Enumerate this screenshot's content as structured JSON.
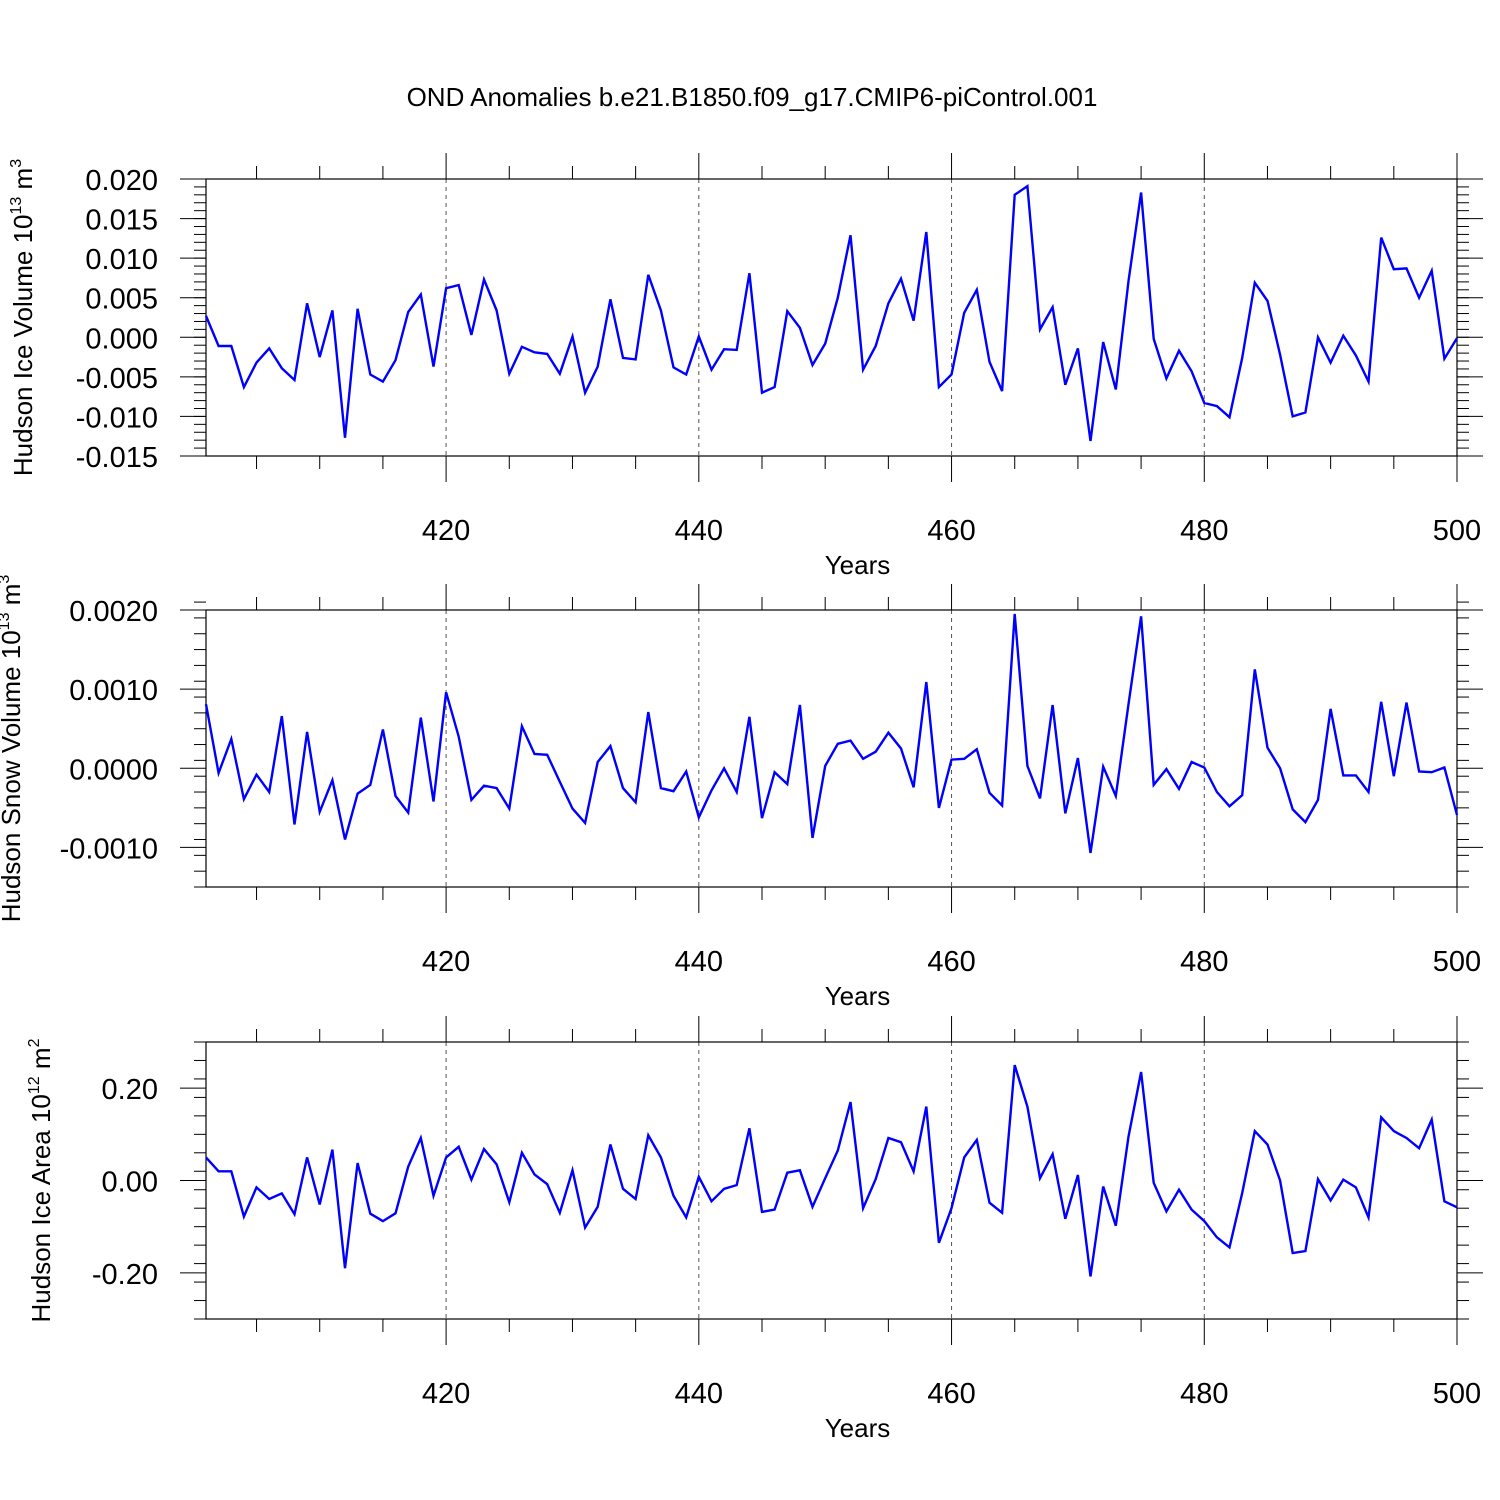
{
  "title": "OND Anomalies b.e21.B1850.f09_g17.CMIP6-piControl.001",
  "colors": {
    "series": "#0000ff",
    "axis": "#000000",
    "grid": "#555555"
  },
  "chart_data": [
    {
      "type": "line",
      "title": "OND Anomalies b.e21.B1850.f09_g17.CMIP6-piControl.001",
      "xlabel": "Years",
      "ylabel_main": "Hudson Ice Volume 10",
      "ylabel_exp": "13",
      "ylabel_unit": " m",
      "ylabel_unit_exp": "3",
      "xlim": [
        401,
        500
      ],
      "ylim": [
        -0.015,
        0.02
      ],
      "x_ticks": [
        420,
        440,
        460,
        480,
        500
      ],
      "x_tick_labels": [
        "420",
        "440",
        "460",
        "480",
        "500"
      ],
      "y_ticks": [
        -0.015,
        -0.01,
        -0.005,
        0,
        0.005,
        0.01,
        0.015,
        0.02
      ],
      "y_tick_labels": [
        "-0.015",
        "-0.010",
        "-0.005",
        "0.000",
        "0.005",
        "0.010",
        "0.015",
        "0.020"
      ],
      "grid": "dashed vertical at major x ticks",
      "x_start": 401,
      "series": [
        {
          "values": [
            0.0027,
            -0.0011,
            -0.0011,
            -0.0063,
            -0.0032,
            -0.0014,
            -0.0039,
            -0.0054,
            0.0043,
            -0.0025,
            0.0034,
            -0.0127,
            0.0036,
            -0.0047,
            -0.0056,
            -0.0029,
            0.0032,
            0.0054,
            -0.0037,
            0.0062,
            0.0066,
            0.0003,
            0.0073,
            0.0034,
            -0.0046,
            -0.0012,
            -0.0019,
            -0.0021,
            -0.0046,
            0.0001,
            -0.007,
            -0.0037,
            0.0048,
            -0.0026,
            -0.0028,
            0.0079,
            0.0034,
            -0.0038,
            -0.0047,
            0.0001,
            -0.0041,
            -0.0015,
            -0.0016,
            0.0081,
            -0.007,
            -0.0063,
            0.0033,
            0.0012,
            -0.0035,
            -0.0008,
            0.005,
            0.0129,
            -0.0041,
            -0.0011,
            0.0043,
            0.0074,
            0.0021,
            0.0133,
            -0.0063,
            -0.0047,
            0.0031,
            0.006,
            -0.0031,
            -0.0068,
            0.018,
            0.0191,
            0.001,
            0.0038,
            -0.006,
            -0.0014,
            -0.0131,
            -0.0006,
            -0.0066,
            0.0071,
            0.0183,
            -0.0002,
            -0.0052,
            -0.0017,
            -0.0043,
            -0.0083,
            -0.0087,
            -0.0101,
            -0.0026,
            0.0069,
            0.0046,
            -0.0022,
            -0.01,
            -0.0095,
            0.0,
            -0.0032,
            0.0002,
            -0.0023,
            -0.0056,
            0.0126,
            0.0086,
            0.0087,
            0.005,
            0.0084,
            -0.0027,
            -0.0001
          ]
        }
      ]
    },
    {
      "type": "line",
      "xlabel": "Years",
      "ylabel_main": "Hudson Snow Volume 10",
      "ylabel_exp": "13",
      "ylabel_unit": " m",
      "ylabel_unit_exp": "3",
      "xlim": [
        401,
        500
      ],
      "ylim": [
        -0.0015,
        0.002
      ],
      "x_ticks": [
        420,
        440,
        460,
        480,
        500
      ],
      "x_tick_labels": [
        "420",
        "440",
        "460",
        "480",
        "500"
      ],
      "y_ticks": [
        -0.001,
        0,
        0.001,
        0.002
      ],
      "y_tick_labels": [
        "-0.0010",
        "0.0000",
        "0.0010",
        "0.0020"
      ],
      "grid": "dashed vertical at major x ticks",
      "x_start": 401,
      "series": [
        {
          "values": [
            0.00081,
            -6e-05,
            0.00037,
            -0.00039,
            -8e-05,
            -0.0003,
            0.00066,
            -0.00071,
            0.00046,
            -0.00055,
            -0.00015,
            -0.0009,
            -0.00032,
            -0.00021,
            0.00049,
            -0.00035,
            -0.00056,
            0.00064,
            -0.00042,
            0.00096,
            0.0004,
            -0.0004,
            -0.00022,
            -0.00025,
            -0.00051,
            0.00053,
            0.00018,
            0.00017,
            -0.00017,
            -0.00051,
            -0.00069,
            8e-05,
            0.00028,
            -0.00025,
            -0.00043,
            0.00071,
            -0.00025,
            -0.00029,
            -4e-05,
            -0.00062,
            -0.00028,
            0.0,
            -0.0003,
            0.00065,
            -0.00063,
            -5e-05,
            -0.0002,
            0.0008,
            -0.00088,
            3e-05,
            0.00031,
            0.00035,
            0.00012,
            0.00021,
            0.00045,
            0.00025,
            -0.00024,
            0.00109,
            -0.0005,
            0.00011,
            0.00012,
            0.00024,
            -0.00031,
            -0.00047,
            0.00195,
            3e-05,
            -0.00038,
            0.0008,
            -0.00057,
            0.00013,
            -0.00107,
            2e-05,
            -0.00035,
            0.00081,
            0.00192,
            -0.00021,
            -1e-05,
            -0.00026,
            8e-05,
            1e-05,
            -0.0003,
            -0.00048,
            -0.00034,
            0.00125,
            0.00026,
            0.0,
            -0.00052,
            -0.00068,
            -0.0004,
            0.00075,
            -9e-05,
            -9e-05,
            -0.0003,
            0.00084,
            -0.0001,
            0.00083,
            -4e-05,
            -5e-05,
            1e-05,
            -0.00059
          ]
        }
      ]
    },
    {
      "type": "line",
      "xlabel": "Years",
      "ylabel_main": "Hudson Ice Area 10",
      "ylabel_exp": "12",
      "ylabel_unit": " m",
      "ylabel_unit_exp": "2",
      "xlim": [
        401,
        500
      ],
      "ylim": [
        -0.3,
        0.3
      ],
      "x_ticks": [
        420,
        440,
        460,
        480,
        500
      ],
      "x_tick_labels": [
        "420",
        "440",
        "460",
        "480",
        "500"
      ],
      "y_ticks": [
        -0.2,
        0,
        0.2
      ],
      "y_tick_labels": [
        "-0.20",
        "0.00",
        "0.20"
      ],
      "grid": "dashed vertical at major x ticks",
      "x_start": 401,
      "series": [
        {
          "values": [
            0.05,
            0.02,
            0.02,
            -0.078,
            -0.015,
            -0.04,
            -0.028,
            -0.073,
            0.05,
            -0.052,
            0.067,
            -0.19,
            0.038,
            -0.072,
            -0.088,
            -0.071,
            0.03,
            0.092,
            -0.033,
            0.05,
            0.073,
            0.002,
            0.068,
            0.035,
            -0.047,
            0.06,
            0.013,
            -0.008,
            -0.07,
            0.022,
            -0.102,
            -0.057,
            0.078,
            -0.018,
            -0.04,
            0.098,
            0.05,
            -0.033,
            -0.08,
            0.008,
            -0.045,
            -0.018,
            -0.01,
            0.113,
            -0.068,
            -0.063,
            0.017,
            0.022,
            -0.057,
            0.005,
            0.065,
            0.17,
            -0.06,
            0.003,
            0.092,
            0.083,
            0.02,
            0.16,
            -0.135,
            -0.06,
            0.05,
            0.088,
            -0.048,
            -0.07,
            0.25,
            0.16,
            0.005,
            0.057,
            -0.083,
            0.012,
            -0.208,
            -0.013,
            -0.098,
            0.095,
            0.235,
            -0.005,
            -0.067,
            -0.02,
            -0.063,
            -0.088,
            -0.123,
            -0.145,
            -0.027,
            0.107,
            0.078,
            0.0,
            -0.157,
            -0.153,
            0.003,
            -0.043,
            0.002,
            -0.015,
            -0.08,
            0.137,
            0.107,
            0.092,
            0.07,
            0.132,
            -0.045,
            -0.058
          ]
        }
      ]
    }
  ]
}
